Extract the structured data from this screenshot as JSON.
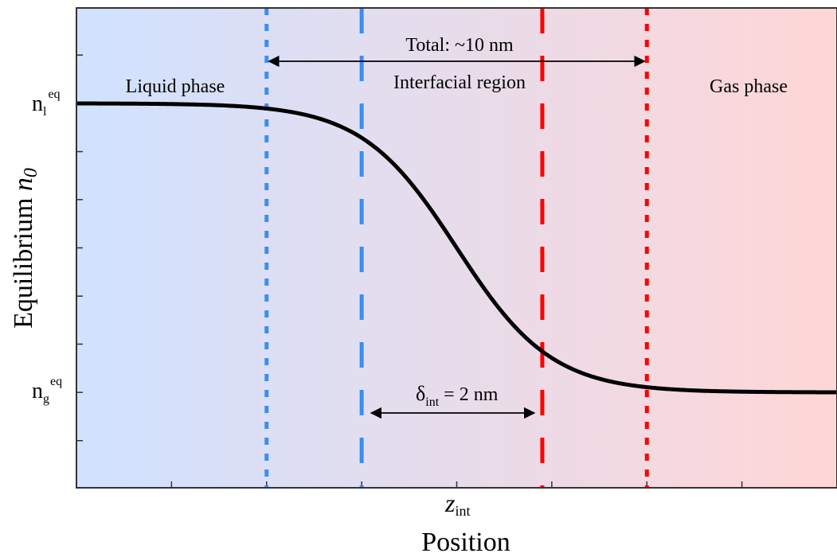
{
  "chart_data": {
    "type": "line",
    "title": "",
    "xlabel": "Position",
    "ylabel": {
      "main": "Equilibrium ",
      "var": "n",
      "sub": "0"
    },
    "x_tick_label": {
      "main": "z",
      "sub": "int"
    },
    "y_tick_labels": {
      "upper": {
        "main": "n",
        "sub": "l",
        "sup": "eq"
      },
      "lower": {
        "main": "n",
        "sub": "g",
        "sup": "eq"
      }
    },
    "curve": {
      "shape": "tanh-profile",
      "description_values": {
        "liquid_level": 1.0,
        "gas_level": 0.0
      },
      "center_x": 0.0,
      "half_width": 1.0
    },
    "xlim": [
      -4.0,
      4.0
    ],
    "ylim": [
      -0.33,
      1.33
    ],
    "gradient_colors": {
      "left": "#d0e2ff",
      "right": "#ffd6d6"
    },
    "vertical_lines": [
      {
        "x": -2.0,
        "color": "#3b8ef0",
        "style": "dotted"
      },
      {
        "x": -1.0,
        "color": "#3b8ef0",
        "style": "dashed"
      },
      {
        "x": 0.9,
        "color": "#ff0000",
        "style": "dashed"
      },
      {
        "x": 2.0,
        "color": "#ff0000",
        "style": "dotted"
      }
    ],
    "annotations": {
      "liquid_phase": "Liquid phase",
      "gas_phase": "Gas phase",
      "interfacial_region": "Interfacial region",
      "total": "Total: ~10 nm",
      "delta": {
        "main": "δ",
        "sub": "int",
        "rest": " = 2 nm"
      }
    },
    "grid": false,
    "legend": "none"
  }
}
